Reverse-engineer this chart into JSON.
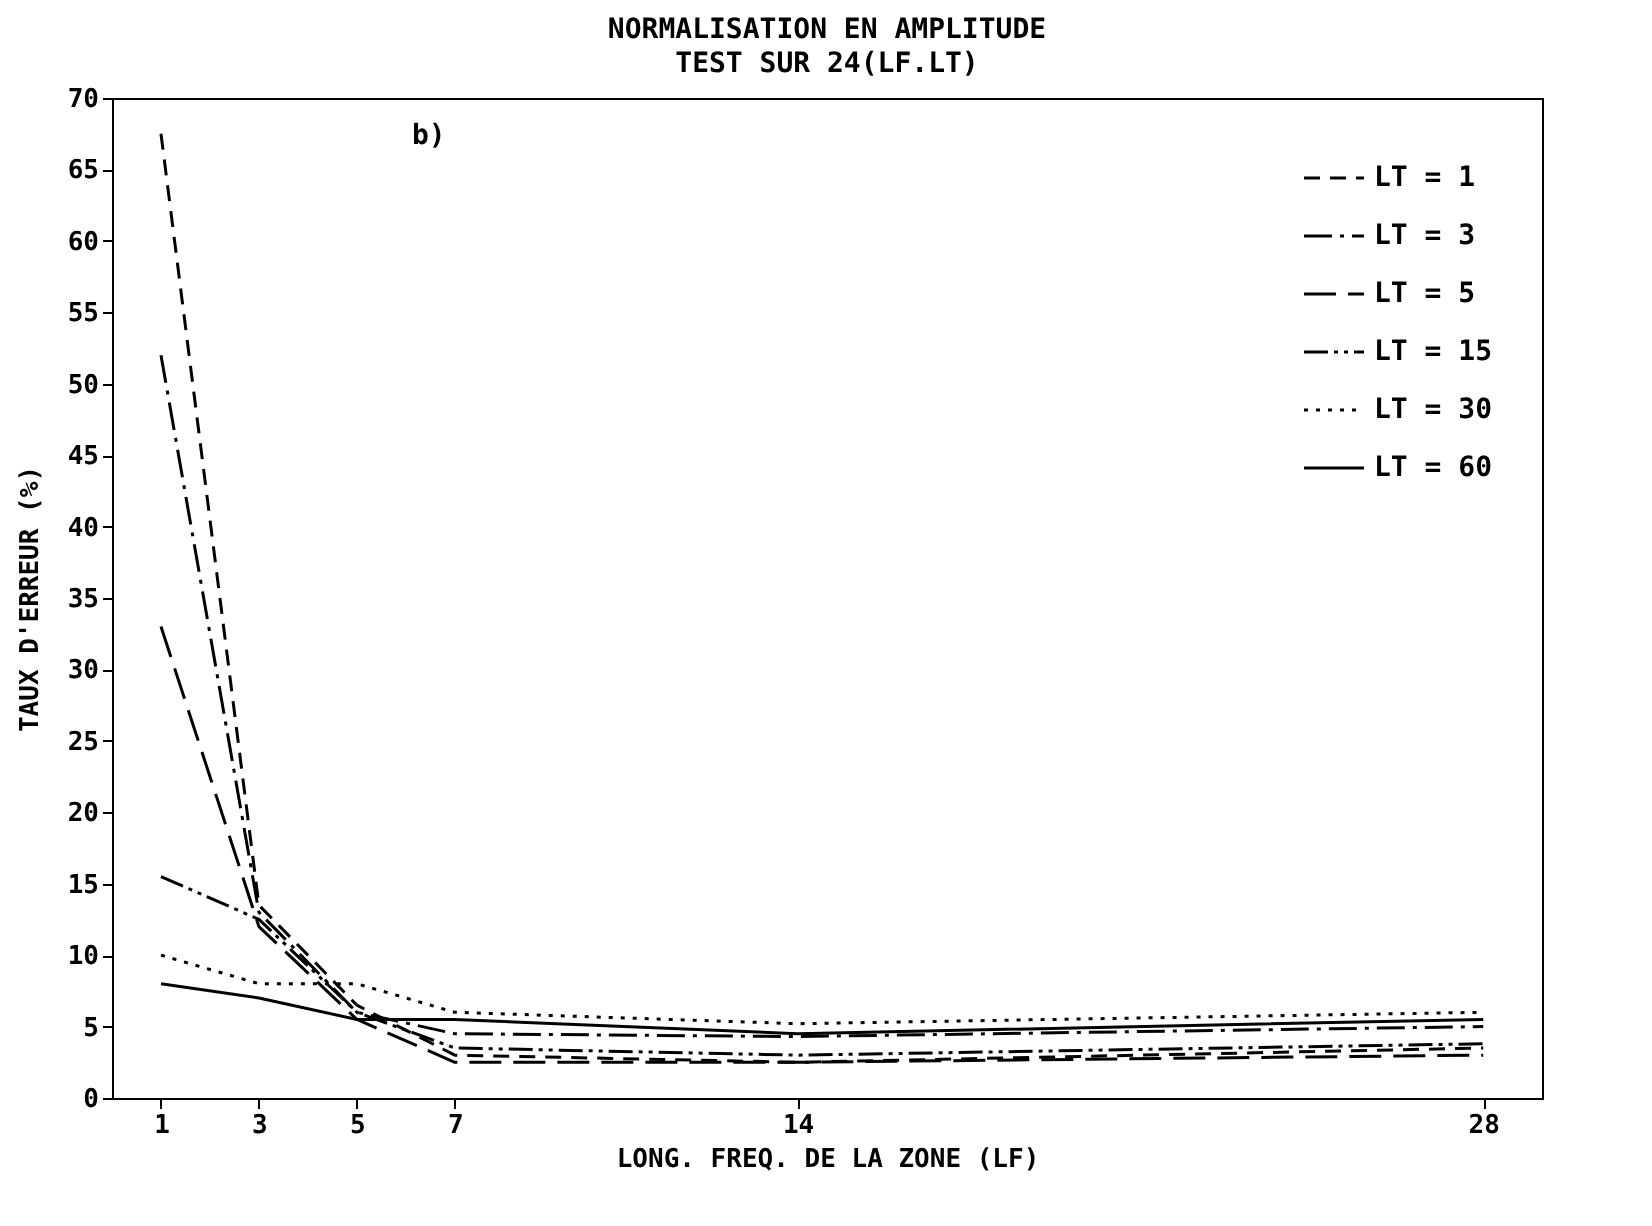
{
  "chart_data": {
    "type": "line",
    "title": "NORMALISATION EN AMPLITUDE",
    "subtitle": "TEST SUR 24(LF.LT)",
    "xlabel": "LONG. FREQ. DE LA ZONE (LF)",
    "ylabel": "TAUX D'ERREUR (%)",
    "annotations": [
      "b)"
    ],
    "x": [
      1,
      3,
      5,
      7,
      14,
      28
    ],
    "xlim": [
      0,
      29.2
    ],
    "xticks": [
      1,
      3,
      5,
      7,
      14,
      28
    ],
    "ylim": [
      0,
      70
    ],
    "yticks": [
      0,
      5,
      10,
      15,
      20,
      25,
      30,
      35,
      40,
      45,
      50,
      55,
      60,
      65,
      70
    ],
    "grid": false,
    "legend": "top right",
    "marker": "none",
    "series": [
      {
        "name": "LT = 1",
        "color": "#000000",
        "line_style": "dashed",
        "values": [
          67.5,
          13.5,
          6.5,
          3,
          2.5,
          3.5
        ]
      },
      {
        "name": "LT = 3",
        "color": "#000000",
        "line_style": "dashed",
        "values": [
          52,
          13,
          6,
          4.5,
          4.3,
          5
        ]
      },
      {
        "name": "LT = 5",
        "color": "#000000",
        "line_style": "dashed",
        "values": [
          33,
          12,
          5.5,
          2.5,
          2.5,
          3
        ]
      },
      {
        "name": "LT = 15",
        "color": "#000000",
        "line_style": "dashed",
        "values": [
          15.5,
          12.5,
          6,
          3.5,
          3,
          3.8
        ]
      },
      {
        "name": "LT = 30",
        "color": "#000000",
        "line_style": "dotted",
        "values": [
          10,
          8,
          8,
          6,
          5.2,
          6
        ]
      },
      {
        "name": "LT = 60",
        "color": "#000000",
        "line_style": "solid",
        "values": [
          8,
          7,
          5.5,
          5.5,
          4.5,
          5.5
        ]
      }
    ]
  }
}
